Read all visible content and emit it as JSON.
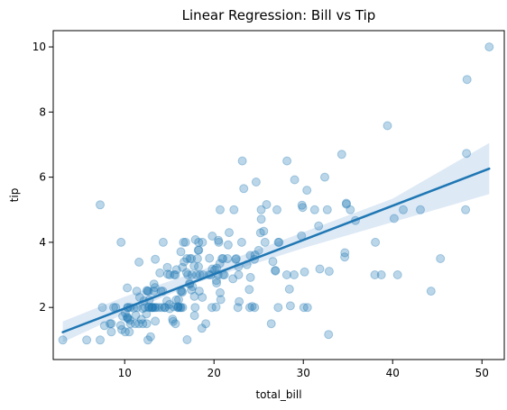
{
  "chart_data": {
    "type": "scatter",
    "title": "Linear Regression: Bill vs Tip",
    "xlabel": "total_bill",
    "ylabel": "tip",
    "xlim": [
      2,
      52.5
    ],
    "ylim": [
      0.4,
      10.5
    ],
    "xticks": [
      10,
      20,
      30,
      40,
      50
    ],
    "yticks": [
      2,
      4,
      6,
      8,
      10
    ],
    "grid": false,
    "colors": {
      "points": "#1f77b4",
      "line": "#1f77b4",
      "band": "#c6dbef"
    },
    "regression": {
      "x": [
        3.07,
        50.81
      ],
      "y": [
        1.24,
        6.26
      ]
    },
    "confidence_band": {
      "x": [
        3.07,
        10,
        18,
        22,
        30,
        40,
        50.81
      ],
      "lower": [
        0.93,
        1.81,
        2.75,
        3.12,
        3.82,
        4.62,
        5.48
      ],
      "upper": [
        1.57,
        2.33,
        3.09,
        3.48,
        4.31,
        5.34,
        7.05
      ]
    },
    "points": [
      [
        3.07,
        1.0
      ],
      [
        5.75,
        1.0
      ],
      [
        7.25,
        1.0
      ],
      [
        7.25,
        5.15
      ],
      [
        7.5,
        2.0
      ],
      [
        7.74,
        1.44
      ],
      [
        8.35,
        1.5
      ],
      [
        8.5,
        1.25
      ],
      [
        8.5,
        1.5
      ],
      [
        8.77,
        2.0
      ],
      [
        9.0,
        2.0
      ],
      [
        9.55,
        1.45
      ],
      [
        9.6,
        4.0
      ],
      [
        9.68,
        1.32
      ],
      [
        9.78,
        1.73
      ],
      [
        10.07,
        1.25
      ],
      [
        10.07,
        1.83
      ],
      [
        10.27,
        1.71
      ],
      [
        10.29,
        2.6
      ],
      [
        10.33,
        1.67
      ],
      [
        10.33,
        2.0
      ],
      [
        10.34,
        1.66
      ],
      [
        10.34,
        2.0
      ],
      [
        10.51,
        1.25
      ],
      [
        10.59,
        1.61
      ],
      [
        10.63,
        2.0
      ],
      [
        10.65,
        1.5
      ],
      [
        11.02,
        1.98
      ],
      [
        11.17,
        1.5
      ],
      [
        11.24,
        1.76
      ],
      [
        11.35,
        2.5
      ],
      [
        11.38,
        2.0
      ],
      [
        11.59,
        1.5
      ],
      [
        11.61,
        3.39
      ],
      [
        11.69,
        2.31
      ],
      [
        11.87,
        1.63
      ],
      [
        12.02,
        1.97
      ],
      [
        12.03,
        1.5
      ],
      [
        12.16,
        2.2
      ],
      [
        12.26,
        2.0
      ],
      [
        12.43,
        1.8
      ],
      [
        12.46,
        1.5
      ],
      [
        12.48,
        2.52
      ],
      [
        12.54,
        2.5
      ],
      [
        12.6,
        1.0
      ],
      [
        12.66,
        2.5
      ],
      [
        12.69,
        2.0
      ],
      [
        12.74,
        2.01
      ],
      [
        12.76,
        2.23
      ],
      [
        12.9,
        1.1
      ],
      [
        13.0,
        2.0
      ],
      [
        13.03,
        2.0
      ],
      [
        13.13,
        2.0
      ],
      [
        13.16,
        2.0
      ],
      [
        13.27,
        2.5
      ],
      [
        13.28,
        2.72
      ],
      [
        13.37,
        2.0
      ],
      [
        13.39,
        2.61
      ],
      [
        13.42,
        1.58
      ],
      [
        13.42,
        3.48
      ],
      [
        13.51,
        2.0
      ],
      [
        13.81,
        2.0
      ],
      [
        13.94,
        3.06
      ],
      [
        14.07,
        2.5
      ],
      [
        14.15,
        2.0
      ],
      [
        14.26,
        2.5
      ],
      [
        14.31,
        4.0
      ],
      [
        14.48,
        2.0
      ],
      [
        14.52,
        2.0
      ],
      [
        14.73,
        2.2
      ],
      [
        14.78,
        3.23
      ],
      [
        14.83,
        3.02
      ],
      [
        15.01,
        2.09
      ],
      [
        15.04,
        1.96
      ],
      [
        15.06,
        3.0
      ],
      [
        15.36,
        1.64
      ],
      [
        15.42,
        1.57
      ],
      [
        15.48,
        2.02
      ],
      [
        15.53,
        3.0
      ],
      [
        15.69,
        1.5
      ],
      [
        15.69,
        3.0
      ],
      [
        15.77,
        2.23
      ],
      [
        15.81,
        3.16
      ],
      [
        15.95,
        2.0
      ],
      [
        15.98,
        2.03
      ],
      [
        16.0,
        2.0
      ],
      [
        16.04,
        2.24
      ],
      [
        16.21,
        2.0
      ],
      [
        16.27,
        2.5
      ],
      [
        16.29,
        3.71
      ],
      [
        16.31,
        2.0
      ],
      [
        16.4,
        2.5
      ],
      [
        16.45,
        2.47
      ],
      [
        16.47,
        3.23
      ],
      [
        16.49,
        2.0
      ],
      [
        16.58,
        4.0
      ],
      [
        16.66,
        3.4
      ],
      [
        16.82,
        4.0
      ],
      [
        16.93,
        3.07
      ],
      [
        16.97,
        3.5
      ],
      [
        16.99,
        1.01
      ],
      [
        17.07,
        3.0
      ],
      [
        17.26,
        2.74
      ],
      [
        17.29,
        2.71
      ],
      [
        17.31,
        3.5
      ],
      [
        17.46,
        2.54
      ],
      [
        17.47,
        3.5
      ],
      [
        17.51,
        3.0
      ],
      [
        17.59,
        2.64
      ],
      [
        17.78,
        3.27
      ],
      [
        17.81,
        2.34
      ],
      [
        17.82,
        1.75
      ],
      [
        17.89,
        2.0
      ],
      [
        17.92,
        4.08
      ],
      [
        18.04,
        3.0
      ],
      [
        18.15,
        3.5
      ],
      [
        18.24,
        3.76
      ],
      [
        18.26,
        3.25
      ],
      [
        18.28,
        4.0
      ],
      [
        18.29,
        3.76
      ],
      [
        18.35,
        2.5
      ],
      [
        18.43,
        3.0
      ],
      [
        18.64,
        1.36
      ],
      [
        18.69,
        2.31
      ],
      [
        18.71,
        4.0
      ],
      [
        18.78,
        3.0
      ],
      [
        19.08,
        1.5
      ],
      [
        19.44,
        3.0
      ],
      [
        19.49,
        3.51
      ],
      [
        19.65,
        3.0
      ],
      [
        19.77,
        2.0
      ],
      [
        19.81,
        4.19
      ],
      [
        19.82,
        3.18
      ],
      [
        20.08,
        3.15
      ],
      [
        20.23,
        2.01
      ],
      [
        20.27,
        2.83
      ],
      [
        20.29,
        2.75
      ],
      [
        20.29,
        3.21
      ],
      [
        20.45,
        3.0
      ],
      [
        20.49,
        4.06
      ],
      [
        20.53,
        4.0
      ],
      [
        20.65,
        3.35
      ],
      [
        20.69,
        2.45
      ],
      [
        20.69,
        5.0
      ],
      [
        20.76,
        2.24
      ],
      [
        20.9,
        3.5
      ],
      [
        21.01,
        3.0
      ],
      [
        21.01,
        3.5
      ],
      [
        21.16,
        3.0
      ],
      [
        21.5,
        3.5
      ],
      [
        21.58,
        3.92
      ],
      [
        21.7,
        4.3
      ],
      [
        22.12,
        2.88
      ],
      [
        22.23,
        5.0
      ],
      [
        22.42,
        3.48
      ],
      [
        22.49,
        3.5
      ],
      [
        22.67,
        2.0
      ],
      [
        22.75,
        3.25
      ],
      [
        22.76,
        3.0
      ],
      [
        22.82,
        2.18
      ],
      [
        23.1,
        4.0
      ],
      [
        23.17,
        6.5
      ],
      [
        23.33,
        5.65
      ],
      [
        23.68,
        3.31
      ],
      [
        23.95,
        2.55
      ],
      [
        24.01,
        2.0
      ],
      [
        24.06,
        3.6
      ],
      [
        24.08,
        2.92
      ],
      [
        24.27,
        2.03
      ],
      [
        24.52,
        3.48
      ],
      [
        24.55,
        2.0
      ],
      [
        24.59,
        3.61
      ],
      [
        24.71,
        5.85
      ],
      [
        25.0,
        3.75
      ],
      [
        25.21,
        4.29
      ],
      [
        25.28,
        5.0
      ],
      [
        25.29,
        4.71
      ],
      [
        25.56,
        4.34
      ],
      [
        25.71,
        4.0
      ],
      [
        25.89,
        5.16
      ],
      [
        26.41,
        1.5
      ],
      [
        26.59,
        3.41
      ],
      [
        26.86,
        3.14
      ],
      [
        26.88,
        3.12
      ],
      [
        27.05,
        5.0
      ],
      [
        27.18,
        2.0
      ],
      [
        27.2,
        4.0
      ],
      [
        27.28,
        4.0
      ],
      [
        28.15,
        3.0
      ],
      [
        28.17,
        6.5
      ],
      [
        28.44,
        2.56
      ],
      [
        28.55,
        2.05
      ],
      [
        28.97,
        3.0
      ],
      [
        29.03,
        5.92
      ],
      [
        29.8,
        4.2
      ],
      [
        29.85,
        5.14
      ],
      [
        29.93,
        5.07
      ],
      [
        30.06,
        2.0
      ],
      [
        30.14,
        3.09
      ],
      [
        30.4,
        5.6
      ],
      [
        30.46,
        2.0
      ],
      [
        31.27,
        5.0
      ],
      [
        31.71,
        4.5
      ],
      [
        31.85,
        3.18
      ],
      [
        32.4,
        6.0
      ],
      [
        32.68,
        5.0
      ],
      [
        32.83,
        1.17
      ],
      [
        32.9,
        3.11
      ],
      [
        34.3,
        6.7
      ],
      [
        34.63,
        3.55
      ],
      [
        34.65,
        3.68
      ],
      [
        34.81,
        5.2
      ],
      [
        34.83,
        5.17
      ],
      [
        35.26,
        5.0
      ],
      [
        35.83,
        4.67
      ],
      [
        38.01,
        3.0
      ],
      [
        38.07,
        4.0
      ],
      [
        38.73,
        3.0
      ],
      [
        39.42,
        7.58
      ],
      [
        40.17,
        4.73
      ],
      [
        40.55,
        3.0
      ],
      [
        41.19,
        5.0
      ],
      [
        43.11,
        5.0
      ],
      [
        44.3,
        2.5
      ],
      [
        45.35,
        3.5
      ],
      [
        48.17,
        5.0
      ],
      [
        48.27,
        6.73
      ],
      [
        48.33,
        9.0
      ],
      [
        50.81,
        10.0
      ]
    ]
  }
}
